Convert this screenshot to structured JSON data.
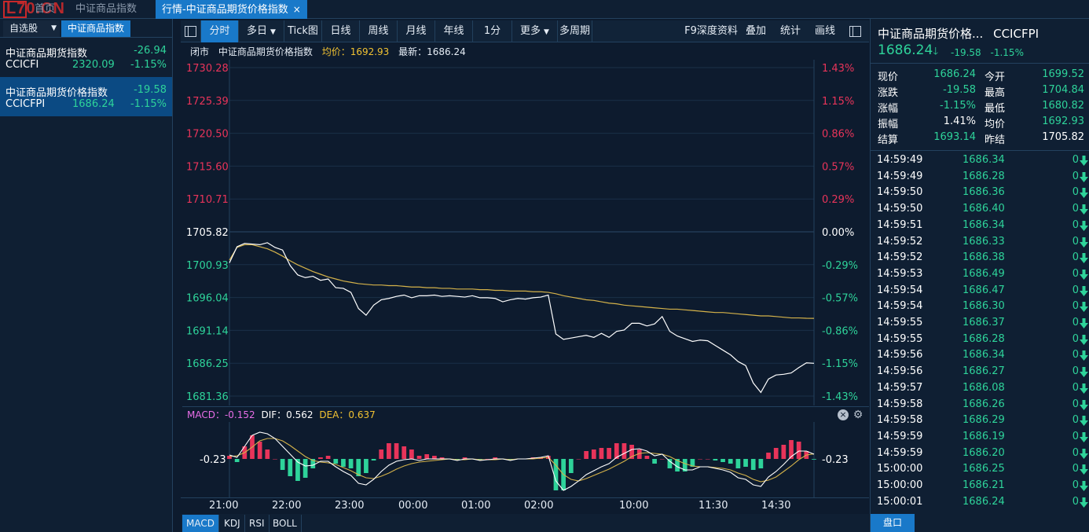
{
  "top_tabs": {
    "watermark": "L70.CN",
    "home": "首页",
    "index_tab": "中证商品指数",
    "active_tab": "行情-中证商品期货价格指数",
    "close": "×"
  },
  "left_panel": {
    "dropdown": "自选股",
    "active_tab": "中证商品指数",
    "items": [
      {
        "name": "中证商品期货指数",
        "code": "CCICFI",
        "change": "-26.94",
        "price": "2320.09",
        "pct": "-1.15%"
      },
      {
        "name": "中证商品期货价格指数",
        "code": "CCICFPI",
        "change": "-19.58",
        "price": "1686.24",
        "pct": "-1.15%"
      }
    ]
  },
  "toolbar": {
    "buttons": [
      "分时",
      "多日",
      "Tick图",
      "日线",
      "周线",
      "月线",
      "年线",
      "1分",
      "更多",
      "多周期"
    ],
    "right_buttons": [
      "F9深度资料",
      "叠加",
      "统计",
      "画线"
    ]
  },
  "info_line": {
    "status": "闭市",
    "name": "中证商品期货价格指数",
    "avg": "均价：1692.93",
    "latest": "最新：1686.24"
  },
  "price_axis": {
    "left": [
      "1730.28",
      "1725.39",
      "1720.50",
      "1715.60",
      "1710.71",
      "1705.82",
      "1700.93",
      "1696.04",
      "1691.14",
      "1686.25",
      "1681.36"
    ],
    "right": [
      "1.43%",
      "1.15%",
      "0.86%",
      "0.57%",
      "0.29%",
      "0.00%",
      "-0.29%",
      "-0.57%",
      "-0.86%",
      "-1.15%",
      "-1.43%"
    ]
  },
  "macd_header": {
    "macd": "MACD：-0.152",
    "dif": "DIF：0.562",
    "dea": "DEA：0.637",
    "close_icon": "×",
    "gear_icon": "⚙"
  },
  "macd_axis": {
    "left": "-0.23",
    "right": "-0.23"
  },
  "time_axis": [
    "21:00",
    "22:00",
    "23:00",
    "00:00",
    "01:00",
    "02:00",
    "10:00",
    "11:30",
    "14:30"
  ],
  "indicator_tabs": [
    "MACD",
    "KDJ",
    "RSI",
    "BOLL"
  ],
  "right_panel": {
    "title": "中证商品期货价格...",
    "code": "CCICFPI",
    "price": "1686.24",
    "arrow": "🡓",
    "change": "-19.58",
    "pct": "-1.15%",
    "quote": [
      {
        "label": "现价",
        "value": "1686.24",
        "label2": "今开",
        "value2": "1699.52"
      },
      {
        "label": "涨跌",
        "value": "-19.58",
        "label2": "最高",
        "value2": "1704.84"
      },
      {
        "label": "涨幅",
        "value": "-1.15%",
        "label2": "最低",
        "value2": "1680.82"
      },
      {
        "label": "振幅",
        "value": "1.41%",
        "label2": "均价",
        "value2": "1692.93"
      },
      {
        "label": "结算",
        "value": "1693.14",
        "label2": "昨结",
        "value2": "1705.82"
      }
    ],
    "ticks": [
      {
        "time": "14:59:49",
        "price": "1686.34",
        "vol": "0"
      },
      {
        "time": "14:59:49",
        "price": "1686.28",
        "vol": "0"
      },
      {
        "time": "14:59:50",
        "price": "1686.36",
        "vol": "0"
      },
      {
        "time": "14:59:50",
        "price": "1686.40",
        "vol": "0"
      },
      {
        "time": "14:59:51",
        "price": "1686.34",
        "vol": "0"
      },
      {
        "time": "14:59:52",
        "price": "1686.33",
        "vol": "0"
      },
      {
        "time": "14:59:52",
        "price": "1686.38",
        "vol": "0"
      },
      {
        "time": "14:59:53",
        "price": "1686.49",
        "vol": "0"
      },
      {
        "time": "14:59:54",
        "price": "1686.47",
        "vol": "0"
      },
      {
        "time": "14:59:54",
        "price": "1686.30",
        "vol": "0"
      },
      {
        "time": "14:59:55",
        "price": "1686.37",
        "vol": "0"
      },
      {
        "time": "14:59:55",
        "price": "1686.28",
        "vol": "0"
      },
      {
        "time": "14:59:56",
        "price": "1686.34",
        "vol": "0"
      },
      {
        "time": "14:59:56",
        "price": "1686.27",
        "vol": "0"
      },
      {
        "time": "14:59:57",
        "price": "1686.08",
        "vol": "0"
      },
      {
        "time": "14:59:58",
        "price": "1686.26",
        "vol": "0"
      },
      {
        "time": "14:59:58",
        "price": "1686.29",
        "vol": "0"
      },
      {
        "time": "14:59:59",
        "price": "1686.19",
        "vol": "0"
      },
      {
        "time": "14:59:59",
        "price": "1686.20",
        "vol": "0"
      },
      {
        "time": "15:00:00",
        "price": "1686.25",
        "vol": "0"
      },
      {
        "time": "15:00:00",
        "price": "1686.21",
        "vol": "0"
      },
      {
        "time": "15:00:01",
        "price": "1686.24",
        "vol": "0"
      }
    ],
    "pankou": "盘口"
  },
  "colors": {
    "up": "#e8345a",
    "down": "#2ed39a",
    "avg": "#d4b24a",
    "accent": "#1979c9"
  },
  "chart_data": {
    "type": "line",
    "prev_settle": 1705.82,
    "ylim": [
      1681.36,
      1730.28
    ],
    "series": [
      {
        "name": "最新",
        "values": [
          1701.2,
          1703.6,
          1704.1,
          1704.0,
          1703.9,
          1704.2,
          1703.5,
          1703.1,
          1700.8,
          1699.4,
          1699.0,
          1699.2,
          1698.6,
          1698.8,
          1697.5,
          1697.4,
          1696.8,
          1694.4,
          1693.4,
          1694.9,
          1695.7,
          1695.9,
          1696.2,
          1696.4,
          1696.0,
          1696.3,
          1696.3,
          1696.4,
          1696.2,
          1696.3,
          1696.2,
          1696.1,
          1696.3,
          1696.0,
          1696.0,
          1695.9,
          1695.4,
          1695.7,
          1695.9,
          1695.8,
          1696.0,
          1696.1,
          1696.4,
          1690.6,
          1689.8,
          1690.0,
          1690.2,
          1690.4,
          1690.1,
          1690.7,
          1690.1,
          1691.0,
          1691.2,
          1692.2,
          1692.2,
          1691.8,
          1692.1,
          1693.2,
          1691.0,
          1690.3,
          1689.9,
          1689.5,
          1689.7,
          1689.6,
          1688.9,
          1688.2,
          1687.5,
          1686.5,
          1685.9,
          1683.3,
          1681.9,
          1683.9,
          1684.5,
          1684.6,
          1684.8,
          1685.6,
          1686.3,
          1686.24
        ]
      },
      {
        "name": "均价",
        "values": [
          1701.6,
          1703.5,
          1703.9,
          1703.9,
          1703.6,
          1703.3,
          1702.8,
          1702.2,
          1701.5,
          1700.9,
          1700.4,
          1699.9,
          1699.5,
          1699.1,
          1698.8,
          1698.5,
          1698.3,
          1698.1,
          1698.0,
          1697.9,
          1697.9,
          1697.8,
          1697.8,
          1697.7,
          1697.6,
          1697.6,
          1697.5,
          1697.5,
          1697.4,
          1697.4,
          1697.3,
          1697.3,
          1697.3,
          1697.2,
          1697.2,
          1697.1,
          1697.1,
          1697.0,
          1697.0,
          1697.0,
          1696.9,
          1696.9,
          1696.8,
          1696.6,
          1696.3,
          1696.1,
          1695.9,
          1695.7,
          1695.6,
          1695.4,
          1695.2,
          1695.1,
          1694.9,
          1694.8,
          1694.7,
          1694.6,
          1694.5,
          1694.4,
          1694.3,
          1694.3,
          1694.2,
          1694.1,
          1694.0,
          1693.9,
          1693.8,
          1693.8,
          1693.7,
          1693.6,
          1693.5,
          1693.4,
          1693.3,
          1693.3,
          1693.2,
          1693.1,
          1693.0,
          1693.0,
          1692.95,
          1692.93
        ]
      }
    ],
    "macd": {
      "dif": [
        0.5,
        0.2,
        1.6,
        3.0,
        3.4,
        3.2,
        2.6,
        1.6,
        0.6,
        -0.4,
        -0.9,
        -0.8,
        -0.3,
        -0.3,
        -1.0,
        -1.6,
        -2.1,
        -3.1,
        -3.3,
        -2.6,
        -1.6,
        -0.8,
        -0.3,
        -0.1,
        0,
        -0.2,
        0,
        0,
        0,
        0,
        -0.2,
        0,
        0,
        -0.2,
        -0.1,
        0,
        0,
        -0.2,
        0,
        0,
        0.1,
        0.2,
        0.4,
        -2.8,
        -4.0,
        -3.5,
        -2.8,
        -2.0,
        -1.5,
        -1.0,
        -0.6,
        0.2,
        0.7,
        1.2,
        1.3,
        1.0,
        0.4,
        0.6,
        -0.3,
        -1.0,
        -1.4,
        -1.4,
        -1.0,
        -1.0,
        -1.2,
        -1.4,
        -1.7,
        -2.4,
        -2.6,
        -3.3,
        -3.5,
        -2.3,
        -1.6,
        -0.7,
        0.3,
        1.0,
        1.0,
        0.6
      ],
      "dea": [
        0.3,
        0.4,
        0.8,
        1.5,
        2.3,
        2.6,
        2.6,
        2.3,
        1.7,
        1.0,
        0.3,
        -0.2,
        -0.4,
        -0.5,
        -0.7,
        -1.1,
        -1.5,
        -2.0,
        -2.4,
        -2.5,
        -2.2,
        -1.8,
        -1.3,
        -0.9,
        -0.6,
        -0.4,
        -0.3,
        -0.2,
        -0.1,
        0,
        -0.1,
        -0.1,
        0,
        -0.1,
        -0.1,
        -0.1,
        0,
        -0.1,
        0,
        0,
        0,
        0.1,
        0.2,
        -0.8,
        -2.0,
        -2.6,
        -2.8,
        -2.5,
        -2.1,
        -1.7,
        -1.3,
        -0.8,
        -0.3,
        0.3,
        0.7,
        0.8,
        0.7,
        0.6,
        0.3,
        -0.2,
        -0.6,
        -0.9,
        -1.0,
        -1.0,
        -1.1,
        -1.2,
        -1.4,
        -1.8,
        -2.1,
        -2.6,
        -2.9,
        -2.7,
        -2.3,
        -1.6,
        -0.9,
        -0.1,
        0.5,
        0.64
      ]
    }
  }
}
